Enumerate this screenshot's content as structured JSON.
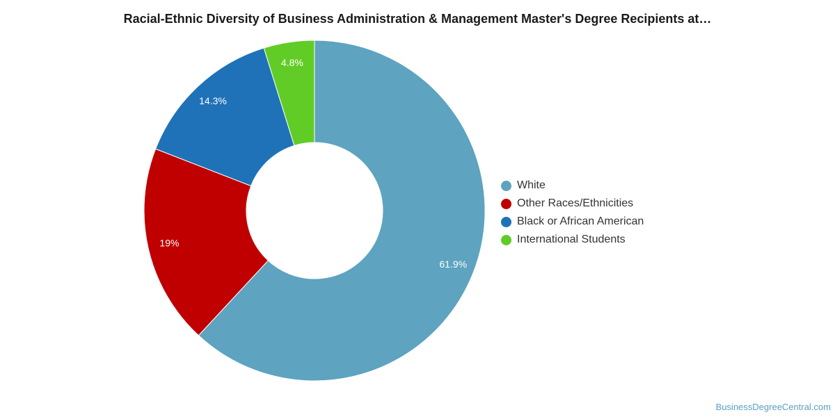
{
  "chart_data": {
    "type": "pie",
    "title": "Racial-Ethnic Diversity of Business Administration & Management Master's Degree Recipients at…",
    "categories": [
      "White",
      "Other Races/Ethnicities",
      "Black or African American",
      "International Students"
    ],
    "values": [
      61.9,
      19,
      14.3,
      4.8
    ],
    "value_labels": [
      "61.9%",
      "19%",
      "14.3%",
      "4.8%"
    ],
    "colors": [
      "#5ea3c0",
      "#c00000",
      "#1f72b8",
      "#62cc27"
    ],
    "legend_position": "right",
    "donut": true
  },
  "watermark": "BusinessDegreeCentral.com"
}
